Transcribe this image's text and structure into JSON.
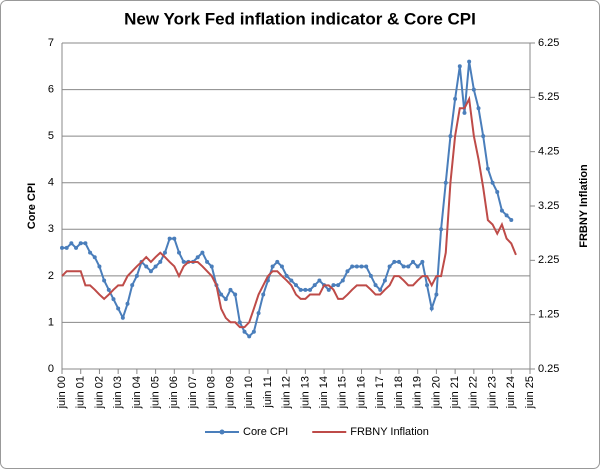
{
  "chart_data": {
    "type": "line",
    "title": "New York Fed inflation indicator & Core CPI",
    "y_label": "Core CPI",
    "y2_label": "FRBNY Inflation",
    "categories": [
      "juin 00",
      null,
      null,
      null,
      "juin 01",
      null,
      null,
      null,
      "juin 02",
      null,
      null,
      null,
      "juin 03",
      null,
      null,
      null,
      "juin 04",
      null,
      null,
      null,
      "juin 05",
      null,
      null,
      null,
      "juin 06",
      null,
      null,
      null,
      "juin 07",
      null,
      null,
      null,
      "juin 08",
      null,
      null,
      null,
      "juin 09",
      null,
      null,
      null,
      "juin 10",
      null,
      null,
      null,
      "juin 11",
      null,
      null,
      null,
      "juin 12",
      null,
      null,
      null,
      "juin 13",
      null,
      null,
      null,
      "juin 14",
      null,
      null,
      null,
      "juin 15",
      null,
      null,
      null,
      "juin 16",
      null,
      null,
      null,
      "juin 17",
      null,
      null,
      null,
      "juin 18",
      null,
      null,
      null,
      "juin 19",
      null,
      null,
      null,
      "juin 20",
      null,
      null,
      null,
      "juin 21",
      null,
      null,
      null,
      "juin 22",
      null,
      null,
      null,
      "juin 23",
      null,
      null,
      null,
      "juin 24",
      null,
      null,
      null,
      "juin 25"
    ],
    "series": [
      {
        "name": "Core CPI",
        "color": "#4a7ebb",
        "marker": true,
        "values": [
          2.6,
          2.6,
          2.7,
          2.6,
          2.7,
          2.7,
          2.5,
          2.4,
          2.2,
          1.9,
          1.7,
          1.5,
          1.3,
          1.1,
          1.4,
          1.8,
          2.0,
          2.3,
          2.2,
          2.1,
          2.2,
          2.3,
          2.5,
          2.8,
          2.8,
          2.5,
          2.3,
          2.3,
          2.3,
          2.4,
          2.5,
          2.3,
          2.2,
          1.8,
          1.6,
          1.5,
          1.7,
          1.6,
          1.0,
          0.8,
          0.7,
          0.8,
          1.2,
          1.6,
          1.9,
          2.2,
          2.3,
          2.2,
          2.0,
          1.9,
          1.8,
          1.7,
          1.7,
          1.7,
          1.8,
          1.9,
          1.8,
          1.7,
          1.8,
          1.8,
          1.9,
          2.1,
          2.2,
          2.2,
          2.2,
          2.2,
          2.0,
          1.8,
          1.7,
          1.9,
          2.2,
          2.3,
          2.3,
          2.2,
          2.2,
          2.3,
          2.2,
          2.3,
          1.8,
          1.3,
          1.6,
          3.0,
          4.0,
          5.0,
          5.8,
          6.5,
          5.5,
          6.6,
          6.0,
          5.6,
          5.0,
          4.3,
          4.0,
          3.8,
          3.4,
          3.3,
          3.2,
          null,
          null,
          null,
          null
        ]
      },
      {
        "name": "FRBNY Inflation",
        "color": "#be4b48",
        "axis": "y2",
        "marker": false,
        "values": [
          1.96,
          2.05,
          2.05,
          2.05,
          2.05,
          1.79,
          1.79,
          1.71,
          1.62,
          1.54,
          1.62,
          1.71,
          1.79,
          1.79,
          1.96,
          2.05,
          2.14,
          2.22,
          2.31,
          2.22,
          2.31,
          2.39,
          2.31,
          2.22,
          2.14,
          1.96,
          2.14,
          2.22,
          2.22,
          2.22,
          2.14,
          2.05,
          1.96,
          1.79,
          1.36,
          1.19,
          1.11,
          1.11,
          1.02,
          1.02,
          1.11,
          1.36,
          1.62,
          1.79,
          1.96,
          2.05,
          2.05,
          1.96,
          1.88,
          1.79,
          1.62,
          1.54,
          1.54,
          1.62,
          1.62,
          1.62,
          1.79,
          1.79,
          1.71,
          1.54,
          1.54,
          1.62,
          1.71,
          1.79,
          1.79,
          1.79,
          1.71,
          1.62,
          1.62,
          1.71,
          1.79,
          1.96,
          1.96,
          1.88,
          1.79,
          1.79,
          1.88,
          1.96,
          1.96,
          1.79,
          1.96,
          1.96,
          2.39,
          3.68,
          4.54,
          5.05,
          5.05,
          5.22,
          4.54,
          4.11,
          3.59,
          2.99,
          2.91,
          2.74,
          2.91,
          2.65,
          2.56,
          2.35,
          null,
          null,
          null
        ]
      }
    ],
    "ylim": [
      0,
      7
    ],
    "yticks": [
      0,
      1,
      2,
      3,
      4,
      5,
      6,
      7
    ],
    "y2lim": [
      0.25,
      6.25
    ],
    "y2ticks": [
      0.25,
      1.25,
      2.25,
      3.25,
      4.25,
      5.25,
      6.25
    ],
    "grid": true,
    "legend": "bottom"
  }
}
